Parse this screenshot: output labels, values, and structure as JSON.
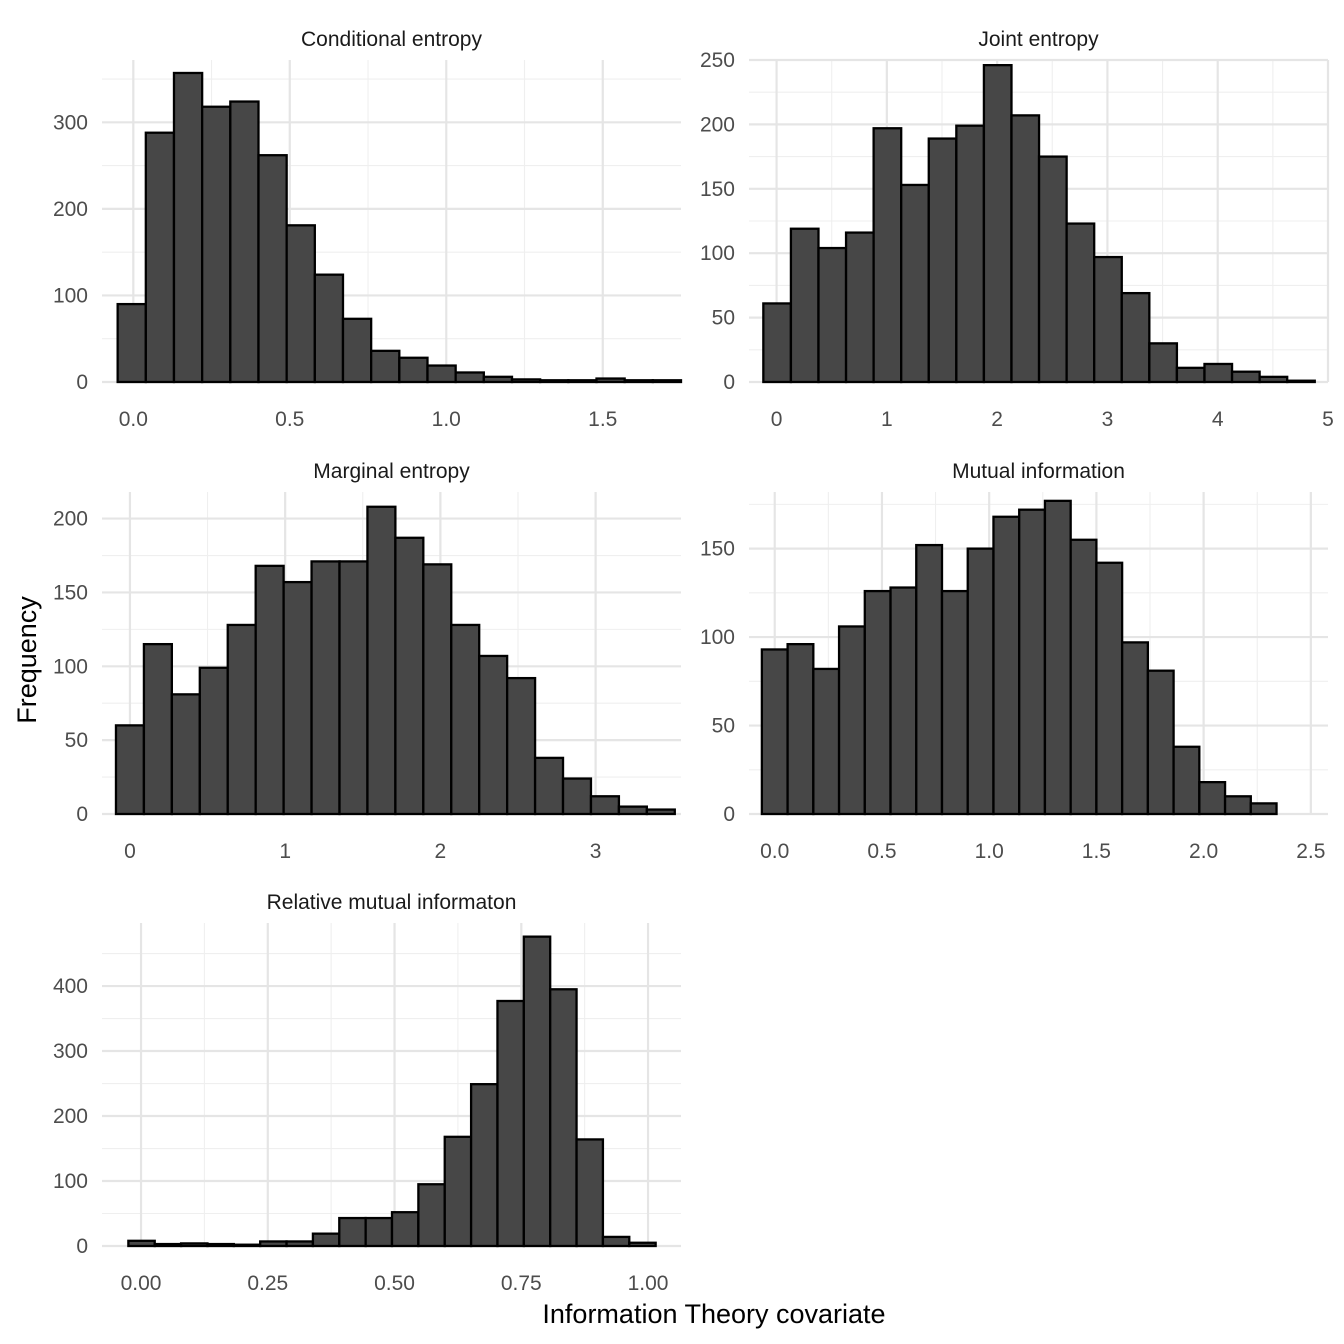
{
  "figure": {
    "xlabel": "Information Theory covariate",
    "ylabel": "Frequency"
  },
  "colors": {
    "bar_fill": "#474747",
    "bar_stroke": "#000000",
    "grid": "#e5e5e5",
    "background": "#ffffff"
  },
  "chart_data": [
    {
      "type": "bar",
      "title": "Conditional entropy",
      "bins": [
        {
          "x0": -0.05,
          "x1": 0.04,
          "y": 90
        },
        {
          "x0": 0.04,
          "x1": 0.13,
          "y": 288
        },
        {
          "x0": 0.13,
          "x1": 0.22,
          "y": 357
        },
        {
          "x0": 0.22,
          "x1": 0.31,
          "y": 318
        },
        {
          "x0": 0.31,
          "x1": 0.4,
          "y": 324
        },
        {
          "x0": 0.4,
          "x1": 0.49,
          "y": 262
        },
        {
          "x0": 0.49,
          "x1": 0.58,
          "y": 181
        },
        {
          "x0": 0.58,
          "x1": 0.67,
          "y": 124
        },
        {
          "x0": 0.67,
          "x1": 0.76,
          "y": 73
        },
        {
          "x0": 0.76,
          "x1": 0.85,
          "y": 36
        },
        {
          "x0": 0.85,
          "x1": 0.94,
          "y": 28
        },
        {
          "x0": 0.94,
          "x1": 1.03,
          "y": 19
        },
        {
          "x0": 1.03,
          "x1": 1.12,
          "y": 11
        },
        {
          "x0": 1.12,
          "x1": 1.21,
          "y": 6
        },
        {
          "x0": 1.21,
          "x1": 1.3,
          "y": 3
        },
        {
          "x0": 1.3,
          "x1": 1.39,
          "y": 2
        },
        {
          "x0": 1.39,
          "x1": 1.48,
          "y": 2
        },
        {
          "x0": 1.48,
          "x1": 1.57,
          "y": 4
        },
        {
          "x0": 1.57,
          "x1": 1.66,
          "y": 2
        },
        {
          "x0": 1.66,
          "x1": 1.75,
          "y": 2
        }
      ],
      "xlim": [
        -0.1,
        1.75
      ],
      "ylim": [
        0,
        372
      ],
      "xticks": [
        {
          "v": 0.0,
          "label": "0.0"
        },
        {
          "v": 0.5,
          "label": "0.5"
        },
        {
          "v": 1.0,
          "label": "1.0"
        },
        {
          "v": 1.5,
          "label": "1.5"
        }
      ],
      "xminor": [
        0.25,
        0.75,
        1.25
      ],
      "yticks": [
        {
          "v": 0,
          "label": "0"
        },
        {
          "v": 100,
          "label": "100"
        },
        {
          "v": 200,
          "label": "200"
        },
        {
          "v": 300,
          "label": "300"
        }
      ],
      "yminor": [
        50,
        150,
        250,
        350
      ],
      "grid": true
    },
    {
      "type": "bar",
      "title": "Joint entropy",
      "bins": [
        {
          "x0": -0.12,
          "x1": 0.13,
          "y": 61
        },
        {
          "x0": 0.13,
          "x1": 0.38,
          "y": 119
        },
        {
          "x0": 0.38,
          "x1": 0.63,
          "y": 104
        },
        {
          "x0": 0.63,
          "x1": 0.88,
          "y": 116
        },
        {
          "x0": 0.88,
          "x1": 1.13,
          "y": 197
        },
        {
          "x0": 1.13,
          "x1": 1.38,
          "y": 153
        },
        {
          "x0": 1.38,
          "x1": 1.63,
          "y": 189
        },
        {
          "x0": 1.63,
          "x1": 1.88,
          "y": 199
        },
        {
          "x0": 1.88,
          "x1": 2.13,
          "y": 246
        },
        {
          "x0": 2.13,
          "x1": 2.38,
          "y": 207
        },
        {
          "x0": 2.38,
          "x1": 2.63,
          "y": 175
        },
        {
          "x0": 2.63,
          "x1": 2.88,
          "y": 123
        },
        {
          "x0": 2.88,
          "x1": 3.13,
          "y": 97
        },
        {
          "x0": 3.13,
          "x1": 3.38,
          "y": 69
        },
        {
          "x0": 3.38,
          "x1": 3.63,
          "y": 30
        },
        {
          "x0": 3.63,
          "x1": 3.88,
          "y": 11
        },
        {
          "x0": 3.88,
          "x1": 4.13,
          "y": 14
        },
        {
          "x0": 4.13,
          "x1": 4.38,
          "y": 8
        },
        {
          "x0": 4.38,
          "x1": 4.63,
          "y": 4
        },
        {
          "x0": 4.63,
          "x1": 4.88,
          "y": 1
        }
      ],
      "xlim": [
        -0.25,
        5.0
      ],
      "ylim": [
        0,
        250
      ],
      "xticks": [
        {
          "v": 0,
          "label": "0"
        },
        {
          "v": 1,
          "label": "1"
        },
        {
          "v": 2,
          "label": "2"
        },
        {
          "v": 3,
          "label": "3"
        },
        {
          "v": 4,
          "label": "4"
        },
        {
          "v": 5,
          "label": "5"
        }
      ],
      "xminor": [
        0.5,
        1.5,
        2.5,
        3.5,
        4.5
      ],
      "yticks": [
        {
          "v": 0,
          "label": "0"
        },
        {
          "v": 50,
          "label": "50"
        },
        {
          "v": 100,
          "label": "100"
        },
        {
          "v": 150,
          "label": "150"
        },
        {
          "v": 200,
          "label": "200"
        },
        {
          "v": 250,
          "label": "250"
        }
      ],
      "yminor": [
        25,
        75,
        125,
        175,
        225
      ],
      "grid": true
    },
    {
      "type": "bar",
      "title": "Marginal entropy",
      "bins": [
        {
          "x0": -0.09,
          "x1": 0.09,
          "y": 60
        },
        {
          "x0": 0.09,
          "x1": 0.27,
          "y": 115
        },
        {
          "x0": 0.27,
          "x1": 0.45,
          "y": 81
        },
        {
          "x0": 0.45,
          "x1": 0.63,
          "y": 99
        },
        {
          "x0": 0.63,
          "x1": 0.81,
          "y": 128
        },
        {
          "x0": 0.81,
          "x1": 0.99,
          "y": 168
        },
        {
          "x0": 0.99,
          "x1": 1.17,
          "y": 157
        },
        {
          "x0": 1.17,
          "x1": 1.35,
          "y": 171
        },
        {
          "x0": 1.35,
          "x1": 1.53,
          "y": 171
        },
        {
          "x0": 1.53,
          "x1": 1.71,
          "y": 208
        },
        {
          "x0": 1.71,
          "x1": 1.89,
          "y": 187
        },
        {
          "x0": 1.89,
          "x1": 2.07,
          "y": 169
        },
        {
          "x0": 2.07,
          "x1": 2.25,
          "y": 128
        },
        {
          "x0": 2.25,
          "x1": 2.43,
          "y": 107
        },
        {
          "x0": 2.43,
          "x1": 2.61,
          "y": 92
        },
        {
          "x0": 2.61,
          "x1": 2.79,
          "y": 38
        },
        {
          "x0": 2.79,
          "x1": 2.97,
          "y": 24
        },
        {
          "x0": 2.97,
          "x1": 3.15,
          "y": 12
        },
        {
          "x0": 3.15,
          "x1": 3.33,
          "y": 5
        },
        {
          "x0": 3.33,
          "x1": 3.51,
          "y": 3
        }
      ],
      "xlim": [
        -0.18,
        3.55
      ],
      "ylim": [
        0,
        218
      ],
      "xticks": [
        {
          "v": 0,
          "label": "0"
        },
        {
          "v": 1,
          "label": "1"
        },
        {
          "v": 2,
          "label": "2"
        },
        {
          "v": 3,
          "label": "3"
        }
      ],
      "xminor": [
        0.5,
        1.5,
        2.5
      ],
      "yticks": [
        {
          "v": 0,
          "label": "0"
        },
        {
          "v": 50,
          "label": "50"
        },
        {
          "v": 100,
          "label": "100"
        },
        {
          "v": 150,
          "label": "150"
        },
        {
          "v": 200,
          "label": "200"
        }
      ],
      "yminor": [
        25,
        75,
        125,
        175
      ],
      "grid": true
    },
    {
      "type": "bar",
      "title": "Mutual information",
      "bins": [
        {
          "x0": -0.06,
          "x1": 0.06,
          "y": 93
        },
        {
          "x0": 0.06,
          "x1": 0.18,
          "y": 96
        },
        {
          "x0": 0.18,
          "x1": 0.3,
          "y": 82
        },
        {
          "x0": 0.3,
          "x1": 0.42,
          "y": 106
        },
        {
          "x0": 0.42,
          "x1": 0.54,
          "y": 126
        },
        {
          "x0": 0.54,
          "x1": 0.66,
          "y": 128
        },
        {
          "x0": 0.66,
          "x1": 0.78,
          "y": 152
        },
        {
          "x0": 0.78,
          "x1": 0.9,
          "y": 126
        },
        {
          "x0": 0.9,
          "x1": 1.02,
          "y": 150
        },
        {
          "x0": 1.02,
          "x1": 1.14,
          "y": 168
        },
        {
          "x0": 1.14,
          "x1": 1.26,
          "y": 172
        },
        {
          "x0": 1.26,
          "x1": 1.38,
          "y": 177
        },
        {
          "x0": 1.38,
          "x1": 1.5,
          "y": 155
        },
        {
          "x0": 1.5,
          "x1": 1.62,
          "y": 142
        },
        {
          "x0": 1.62,
          "x1": 1.74,
          "y": 97
        },
        {
          "x0": 1.74,
          "x1": 1.86,
          "y": 81
        },
        {
          "x0": 1.86,
          "x1": 1.98,
          "y": 38
        },
        {
          "x0": 1.98,
          "x1": 2.1,
          "y": 18
        },
        {
          "x0": 2.1,
          "x1": 2.22,
          "y": 10
        },
        {
          "x0": 2.22,
          "x1": 2.34,
          "y": 6
        }
      ],
      "xlim": [
        -0.12,
        2.58
      ],
      "ylim": [
        0,
        182
      ],
      "xticks": [
        {
          "v": 0.0,
          "label": "0.0"
        },
        {
          "v": 0.5,
          "label": "0.5"
        },
        {
          "v": 1.0,
          "label": "1.0"
        },
        {
          "v": 1.5,
          "label": "1.5"
        },
        {
          "v": 2.0,
          "label": "2.0"
        },
        {
          "v": 2.5,
          "label": "2.5"
        }
      ],
      "xminor": [
        0.25,
        0.75,
        1.25,
        1.75,
        2.25
      ],
      "yticks": [
        {
          "v": 0,
          "label": "0"
        },
        {
          "v": 50,
          "label": "50"
        },
        {
          "v": 100,
          "label": "100"
        },
        {
          "v": 150,
          "label": "150"
        }
      ],
      "yminor": [
        25,
        75,
        125,
        175
      ],
      "grid": true
    },
    {
      "type": "bar",
      "title": "Relative mutual informaton",
      "bins": [
        {
          "x0": -0.025,
          "x1": 0.027,
          "y": 8
        },
        {
          "x0": 0.027,
          "x1": 0.079,
          "y": 3
        },
        {
          "x0": 0.079,
          "x1": 0.131,
          "y": 4
        },
        {
          "x0": 0.131,
          "x1": 0.183,
          "y": 3
        },
        {
          "x0": 0.183,
          "x1": 0.235,
          "y": 2
        },
        {
          "x0": 0.235,
          "x1": 0.287,
          "y": 7
        },
        {
          "x0": 0.287,
          "x1": 0.339,
          "y": 7
        },
        {
          "x0": 0.339,
          "x1": 0.391,
          "y": 19
        },
        {
          "x0": 0.391,
          "x1": 0.443,
          "y": 43
        },
        {
          "x0": 0.443,
          "x1": 0.495,
          "y": 43
        },
        {
          "x0": 0.495,
          "x1": 0.547,
          "y": 52
        },
        {
          "x0": 0.547,
          "x1": 0.599,
          "y": 95
        },
        {
          "x0": 0.599,
          "x1": 0.651,
          "y": 168
        },
        {
          "x0": 0.651,
          "x1": 0.703,
          "y": 249
        },
        {
          "x0": 0.703,
          "x1": 0.755,
          "y": 377
        },
        {
          "x0": 0.755,
          "x1": 0.807,
          "y": 476
        },
        {
          "x0": 0.807,
          "x1": 0.859,
          "y": 395
        },
        {
          "x0": 0.859,
          "x1": 0.911,
          "y": 164
        },
        {
          "x0": 0.911,
          "x1": 0.963,
          "y": 14
        },
        {
          "x0": 0.963,
          "x1": 1.015,
          "y": 5
        }
      ],
      "xlim": [
        -0.077,
        1.065
      ],
      "ylim": [
        0,
        497
      ],
      "xticks": [
        {
          "v": 0.0,
          "label": "0.00"
        },
        {
          "v": 0.25,
          "label": "0.25"
        },
        {
          "v": 0.5,
          "label": "0.50"
        },
        {
          "v": 0.75,
          "label": "0.75"
        },
        {
          "v": 1.0,
          "label": "1.00"
        }
      ],
      "xminor": [
        0.125,
        0.375,
        0.625,
        0.875
      ],
      "yticks": [
        {
          "v": 0,
          "label": "0"
        },
        {
          "v": 100,
          "label": "100"
        },
        {
          "v": 200,
          "label": "200"
        },
        {
          "v": 300,
          "label": "300"
        },
        {
          "v": 400,
          "label": "400"
        }
      ],
      "yminor": [
        50,
        150,
        250,
        350,
        450
      ],
      "grid": true
    }
  ]
}
